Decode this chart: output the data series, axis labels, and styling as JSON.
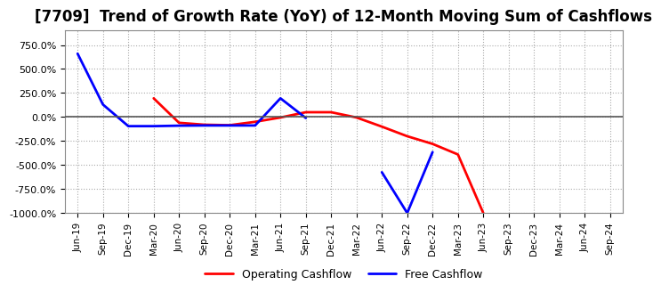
{
  "title": "[7709]  Trend of Growth Rate (YoY) of 12-Month Moving Sum of Cashflows",
  "title_fontsize": 12,
  "background_color": "#ffffff",
  "plot_background_color": "#ffffff",
  "grid_color": "#aaaaaa",
  "zero_line_color": "#555555",
  "operating_color": "#ff0000",
  "free_color": "#0000ff",
  "operating_label": "Operating Cashflow",
  "free_label": "Free Cashflow",
  "ylim": [
    -1000,
    900
  ],
  "yticks": [
    -1000,
    -750,
    -500,
    -250,
    0,
    250,
    500,
    750
  ],
  "x_labels": [
    "Jun-19",
    "Sep-19",
    "Dec-19",
    "Mar-20",
    "Jun-20",
    "Sep-20",
    "Dec-20",
    "Mar-21",
    "Jun-21",
    "Sep-21",
    "Dec-21",
    "Mar-22",
    "Jun-22",
    "Sep-22",
    "Dec-22",
    "Mar-23",
    "Jun-23",
    "Sep-23",
    "Dec-23",
    "Mar-24",
    "Jun-24",
    "Sep-24"
  ],
  "operating_y": [
    null,
    null,
    null,
    195,
    -60,
    -80,
    -85,
    -50,
    -5,
    50,
    50,
    -5,
    -100,
    -200,
    -280,
    -390,
    -1000,
    null,
    null,
    null,
    null,
    null
  ],
  "free_y": [
    660,
    130,
    -95,
    -95,
    -90,
    -88,
    -88,
    -88,
    195,
    -10,
    null,
    null,
    -575,
    -1000,
    -365,
    null,
    null,
    null,
    null,
    null,
    null,
    null
  ]
}
